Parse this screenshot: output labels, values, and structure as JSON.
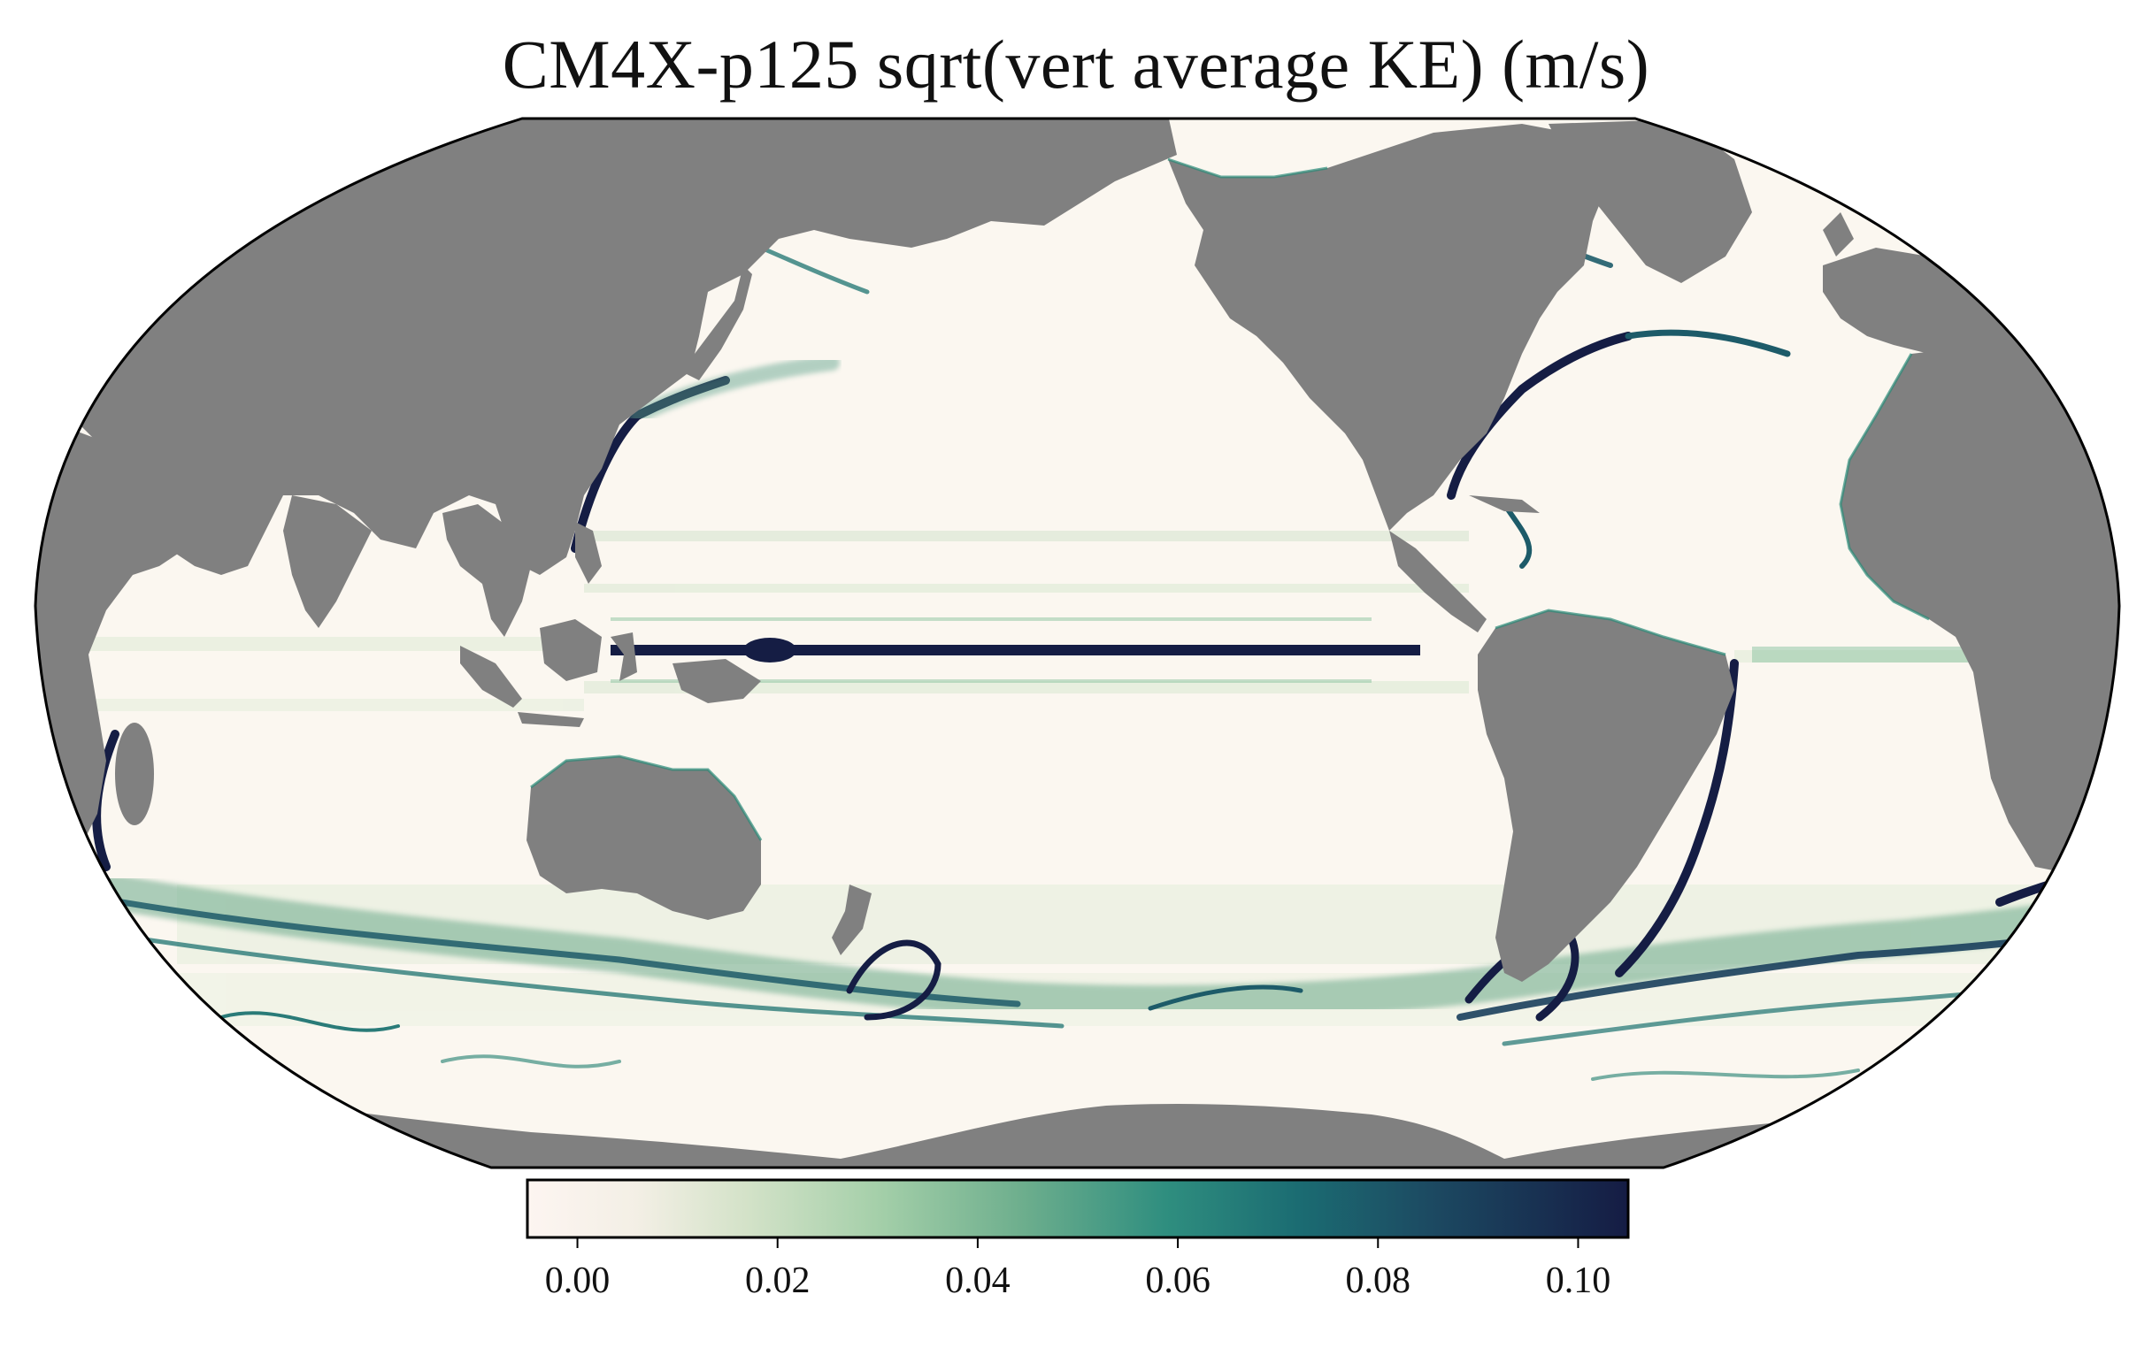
{
  "title": "CM4X-p125 sqrt(vert average KE) (m/s)",
  "colors": {
    "land": "#808080",
    "ocean_low": "#fcf6f0",
    "ocean_mid": "#7fbf9a",
    "ocean_high": "#1a8a78",
    "ocean_max": "#151d44",
    "frame": "#000000"
  },
  "colorbar": {
    "colormap": "cmocean-tempo",
    "min": -0.005,
    "max": 0.105,
    "ticks": [
      0.0,
      0.02,
      0.04,
      0.06,
      0.08,
      0.1
    ],
    "tick_labels": [
      "0.00",
      "0.02",
      "0.04",
      "0.06",
      "0.08",
      "0.10"
    ]
  },
  "map": {
    "projection": "Robinson",
    "central_longitude": "Pacific-centered",
    "land_color": "gray"
  }
}
